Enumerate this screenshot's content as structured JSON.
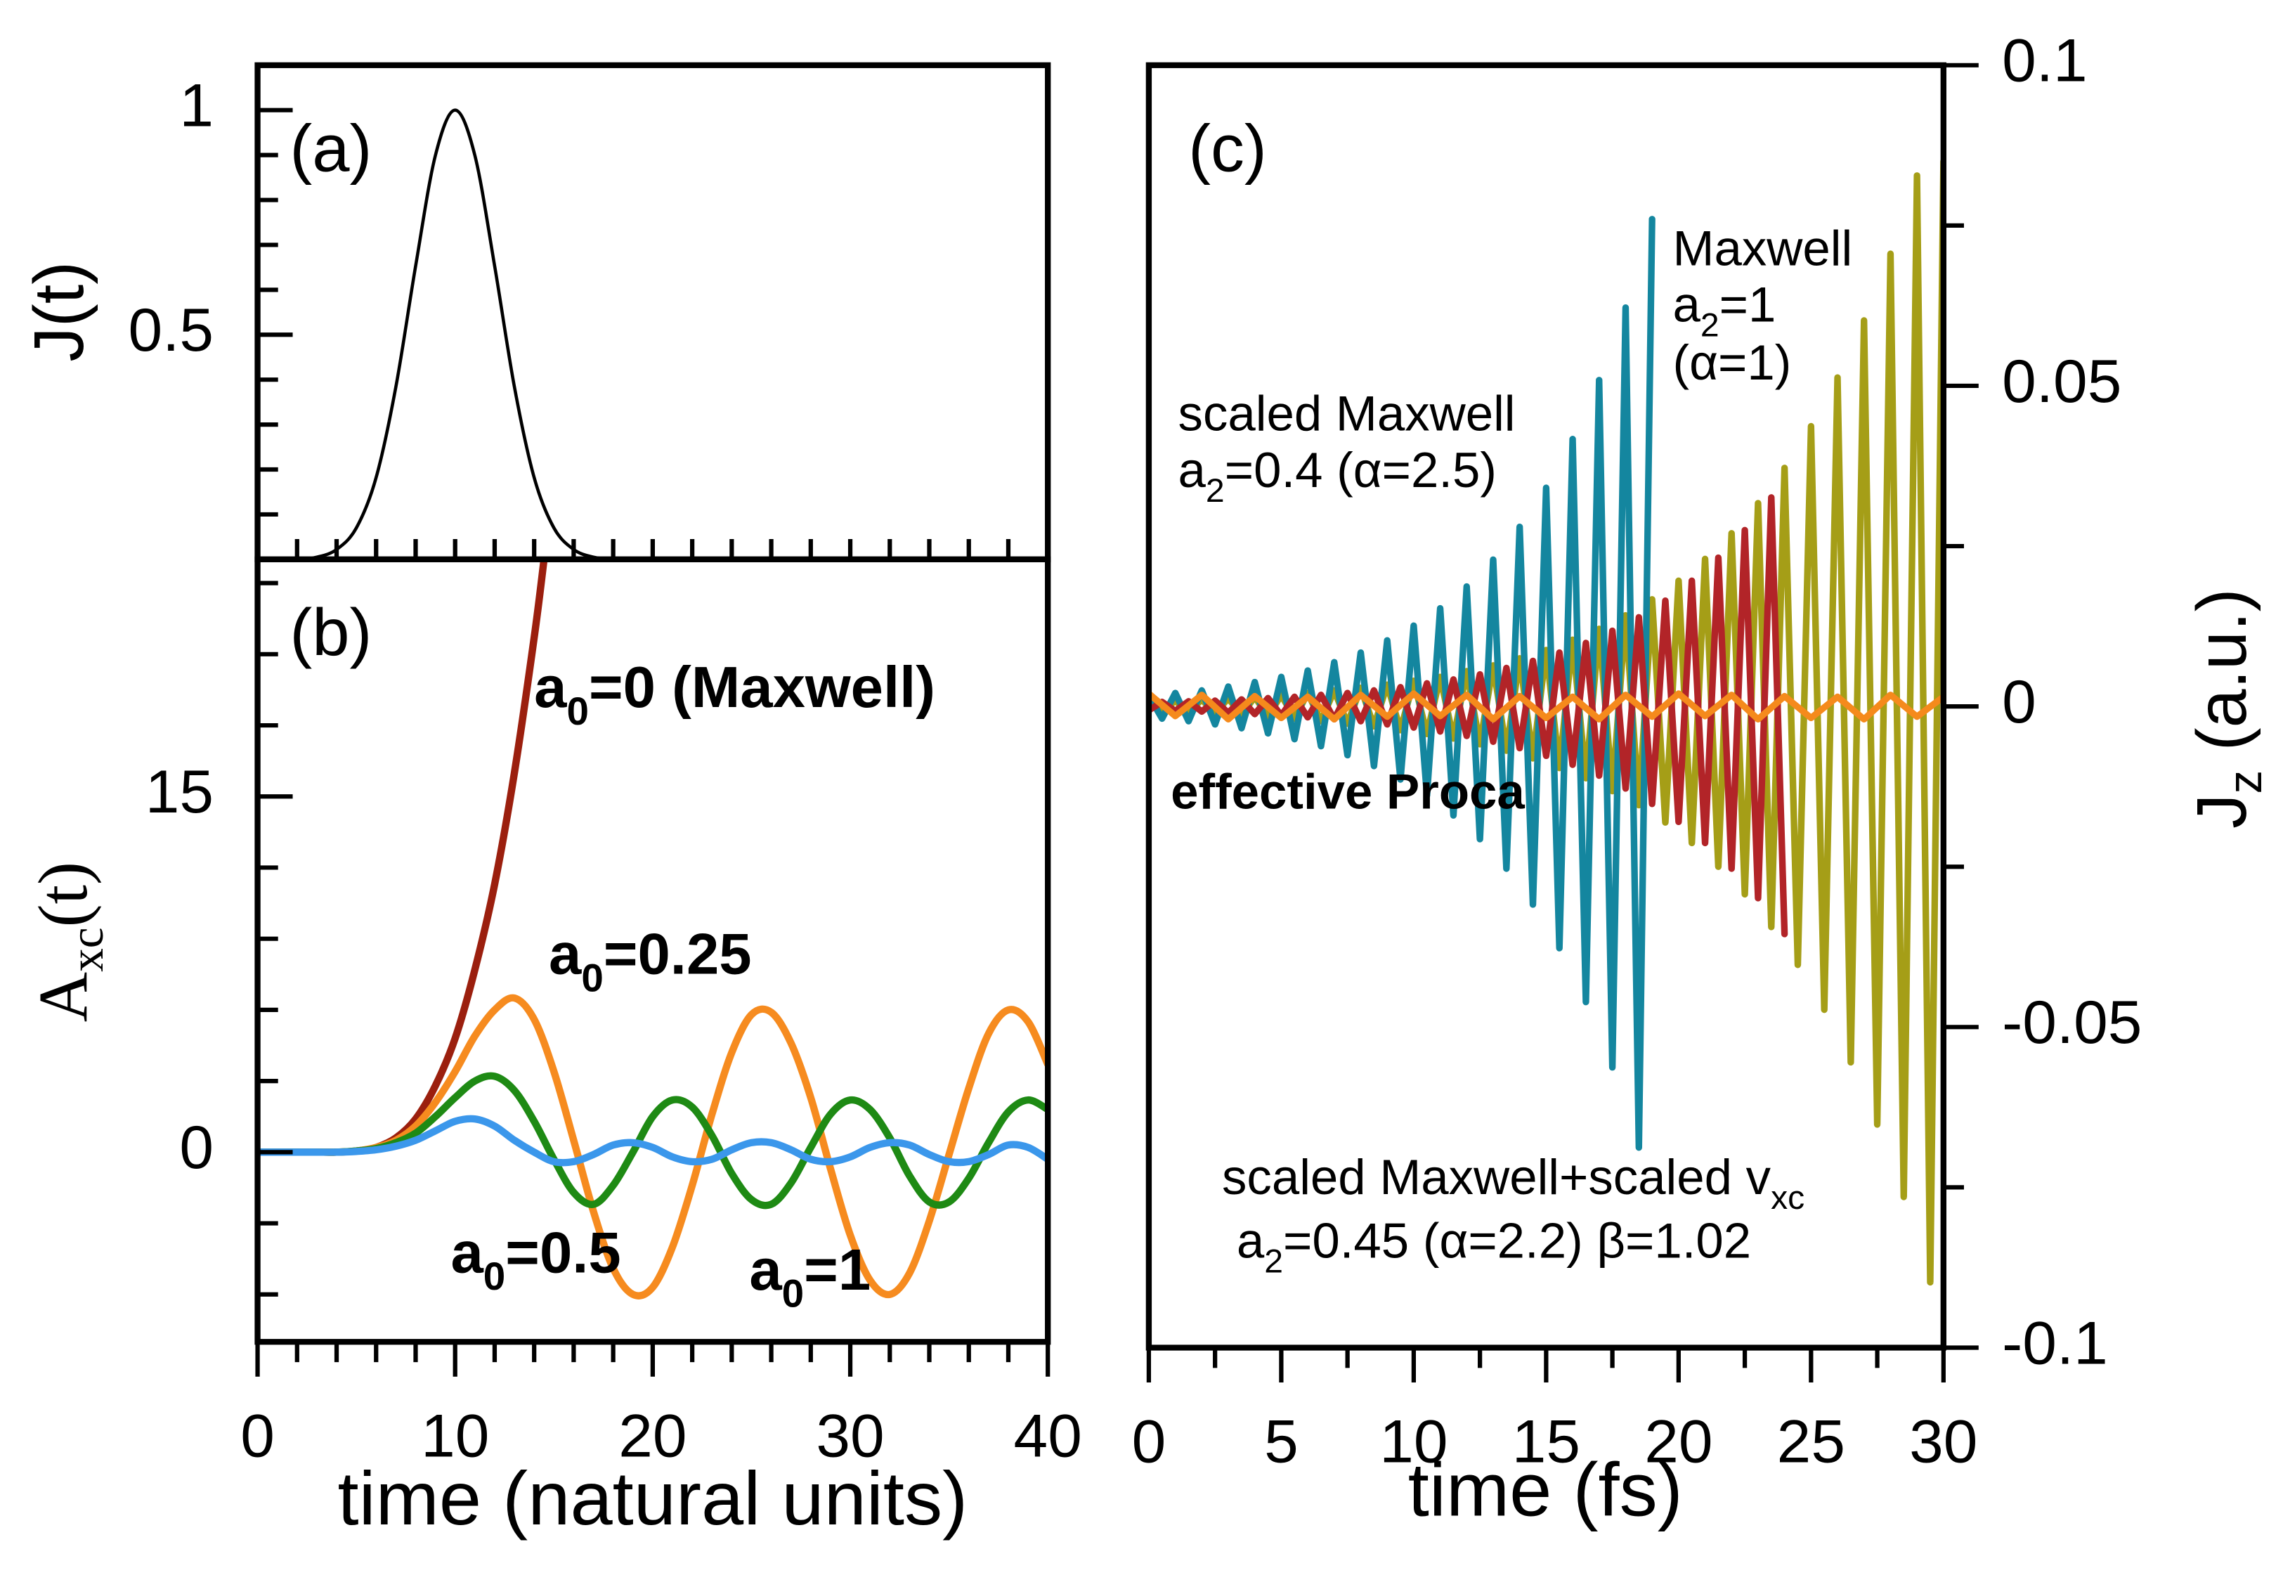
{
  "chart_data": [
    {
      "type": "line",
      "ylabel": "J(t)",
      "annotations": [
        {
          "text": [
            "(a)"
          ],
          "color": "#000000"
        }
      ],
      "xlim": [
        0,
        40
      ],
      "xticks_minor": [
        0,
        2,
        4,
        6,
        8,
        10,
        12,
        14,
        16,
        18,
        20,
        22,
        24,
        26,
        28,
        30,
        32,
        34,
        36,
        38,
        40
      ],
      "ylim": [
        0,
        1.1
      ],
      "yticks": [
        0.5,
        1
      ],
      "yticks_minor": [
        0.1,
        0.2,
        0.3,
        0.4,
        0.6,
        0.7,
        0.8,
        0.9
      ],
      "series": [
        {
          "color": "#000000",
          "x": [
            0,
            2,
            3,
            4,
            5,
            6,
            7,
            8,
            9,
            10,
            11,
            12,
            13,
            14,
            15,
            16,
            17,
            18,
            20,
            40
          ],
          "values": [
            0,
            0,
            0.005,
            0.022,
            0.07,
            0.182,
            0.384,
            0.653,
            0.899,
            1,
            0.899,
            0.653,
            0.384,
            0.182,
            0.07,
            0.022,
            0.005,
            0.001,
            0,
            0
          ]
        }
      ]
    },
    {
      "type": "line",
      "ylabel": [
        "A",
        "xc",
        "(t)"
      ],
      "xlabel": "time (natural units)",
      "annotations": [
        {
          "text": [
            "(b)"
          ],
          "color": "#000000"
        },
        {
          "text": [
            "a",
            "0",
            "=0 (Maxwell)"
          ],
          "color": "#9b1f0e"
        },
        {
          "text": [
            "a",
            "0",
            "=0.25"
          ],
          "color": "#f68b1f"
        },
        {
          "text": [
            "a",
            "0",
            "=0.5"
          ],
          "color": "#1e8a14"
        },
        {
          "text": [
            "a",
            "0",
            "=1"
          ],
          "color": "#3b97eb"
        }
      ],
      "xlim": [
        0,
        40
      ],
      "xticks": [
        0,
        10,
        20,
        30,
        40
      ],
      "xticks_minor": [
        2,
        4,
        6,
        8,
        12,
        14,
        16,
        18,
        22,
        24,
        26,
        28,
        32,
        34,
        36,
        38
      ],
      "ylim": [
        -8,
        25
      ],
      "yticks": [
        0,
        15
      ],
      "yticks_minor": [
        -6,
        -3,
        3,
        6,
        9,
        12,
        18,
        21,
        24
      ],
      "series": [
        {
          "color": "#9b1f0e",
          "x": [
            0,
            1,
            2,
            3,
            4,
            5,
            6,
            7,
            8,
            9,
            10,
            11,
            12,
            13,
            14,
            14.5
          ],
          "values": [
            0,
            0,
            0,
            0,
            0,
            0.05,
            0.2,
            0.6,
            1.4,
            2.8,
            4.8,
            7.7,
            11.3,
            16,
            21.7,
            25
          ]
        },
        {
          "color": "#f68b1f",
          "x": [
            0,
            1,
            2,
            3,
            4,
            5,
            6,
            7,
            8,
            9,
            10,
            11,
            12,
            13,
            14,
            15,
            16,
            17,
            18,
            19,
            20,
            21,
            22,
            23,
            24,
            25,
            26,
            27,
            28,
            29,
            30,
            31,
            32,
            33,
            34,
            35,
            36,
            37,
            38,
            39,
            40
          ],
          "values": [
            0,
            0,
            0,
            0,
            0,
            0.05,
            0.2,
            0.5,
            1.1,
            2.1,
            3.4,
            4.9,
            6,
            6.5,
            5.6,
            3.4,
            0.5,
            -2.5,
            -4.9,
            -6,
            -5.7,
            -4,
            -1.4,
            1.6,
            4.2,
            5.8,
            5.9,
            4.6,
            2.3,
            -0.7,
            -3.5,
            -5.4,
            -6,
            -5.1,
            -2.9,
            -0.1,
            2.7,
            5,
            6,
            5.5,
            3.7
          ]
        },
        {
          "color": "#1e8a14",
          "x": [
            0,
            1,
            2,
            3,
            4,
            5,
            6,
            7,
            8,
            9,
            10,
            11,
            12,
            13,
            14,
            15,
            16,
            17,
            18,
            19,
            20,
            21,
            22,
            23,
            24,
            25,
            26,
            27,
            28,
            29,
            30,
            31,
            32,
            33,
            34,
            35,
            36,
            37,
            38,
            39,
            40
          ],
          "values": [
            0,
            0,
            0,
            0,
            0,
            0.05,
            0.15,
            0.4,
            0.8,
            1.5,
            2.3,
            3,
            3.2,
            2.6,
            1.3,
            -0.3,
            -1.7,
            -2.2,
            -1.4,
            0,
            1.5,
            2.2,
            1.9,
            0.7,
            -0.9,
            -2,
            -2.2,
            -1.3,
            0.2,
            1.6,
            2.2,
            1.8,
            0.6,
            -1,
            -2.1,
            -2.1,
            -1.1,
            0.4,
            1.7,
            2.2,
            1.8
          ]
        },
        {
          "color": "#3b97eb",
          "x": [
            0,
            1,
            2,
            3,
            4,
            5,
            6,
            7,
            8,
            9,
            10,
            11,
            12,
            13,
            14,
            15,
            16,
            17,
            18,
            19,
            20,
            21,
            22,
            23,
            24,
            25,
            26,
            27,
            28,
            29,
            30,
            31,
            32,
            33,
            34,
            35,
            36,
            37,
            38,
            39,
            40
          ],
          "values": [
            0,
            0,
            0,
            0,
            0,
            0.03,
            0.1,
            0.25,
            0.5,
            0.9,
            1.3,
            1.4,
            1.1,
            0.5,
            0,
            -0.4,
            -0.4,
            -0.1,
            0.3,
            0.4,
            0.2,
            -0.2,
            -0.4,
            -0.3,
            0.1,
            0.4,
            0.4,
            0.1,
            -0.3,
            -0.4,
            -0.2,
            0.2,
            0.4,
            0.3,
            -0.1,
            -0.4,
            -0.4,
            -0.1,
            0.3,
            0.2,
            -0.3
          ]
        }
      ]
    },
    {
      "type": "line",
      "ylabel": [
        "J",
        "z",
        " (a.u.)"
      ],
      "xlabel": "time (fs)",
      "annotations": [
        {
          "text": [
            "(c)"
          ],
          "color": "#000000"
        },
        {
          "text": [
            "Maxwell"
          ],
          "color": "#b22428"
        },
        {
          "text": [
            "a",
            "2",
            "=1"
          ],
          "color": "#b22428"
        },
        {
          "text": [
            "(α=1)"
          ],
          "color": "#b22428"
        },
        {
          "text": [
            "scaled Maxwell"
          ],
          "color": "#14869f"
        },
        {
          "text": [
            "a",
            "2",
            "=0.4 (α=2.5)"
          ],
          "color": "#14869f"
        },
        {
          "text": [
            "effective Proca"
          ],
          "color": "#f58a1c"
        },
        {
          "text": [
            "scaled Maxwell+scaled v",
            "xc"
          ],
          "color": "#a59e17"
        },
        {
          "text": [
            "a",
            "2",
            "=0.45 (α=2.2)  β=1.02"
          ],
          "color": "#a59e17"
        }
      ],
      "xlim": [
        0,
        30
      ],
      "xticks": [
        0,
        5,
        10,
        15,
        20,
        25,
        30
      ],
      "xticks_minor": [
        2.5,
        7.5,
        12.5,
        17.5,
        22.5,
        27.5
      ],
      "ylim": [
        -0.1,
        0.1
      ],
      "yticks": [
        -0.1,
        -0.05,
        0,
        0.05,
        0.1
      ],
      "yticks_minor": [
        -0.075,
        -0.025,
        0.025,
        0.075
      ],
      "series": [
        {
          "color": "#a59e17",
          "x": [
            0,
            0.5,
            1,
            1.5,
            2,
            2.5,
            3,
            3.5,
            4,
            4.5,
            5,
            5.5,
            6,
            6.5,
            7,
            7.5,
            8,
            8.5,
            9,
            9.5,
            10,
            10.5,
            11,
            11.5,
            12,
            12.5,
            13,
            13.5,
            14,
            14.5,
            15,
            15.5,
            16,
            16.5,
            17,
            17.5,
            18,
            18.5,
            19,
            19.5,
            20,
            20.5,
            21,
            21.5,
            22,
            22.5,
            23,
            23.5,
            24,
            24.5,
            25,
            25.5,
            26,
            26.5,
            27,
            27.5,
            28,
            28.5,
            29,
            29.5,
            30
          ],
          "values": [
            0.0008,
            -0.0009,
            0.0009,
            -0.001,
            0.0011,
            -0.0012,
            0.0013,
            -0.0014,
            0.0015,
            -0.0016,
            0.0018,
            -0.0019,
            0.0021,
            -0.0023,
            0.0025,
            -0.0027,
            0.0029,
            -0.0031,
            0.0034,
            -0.0037,
            0.004,
            -0.0043,
            0.0046,
            -0.005,
            0.0055,
            -0.0059,
            0.0064,
            -0.0069,
            0.0075,
            -0.0081,
            0.0088,
            -0.0096,
            0.0104,
            -0.0112,
            0.0121,
            -0.0132,
            0.0142,
            -0.0154,
            0.0167,
            -0.0181,
            0.0196,
            -0.0213,
            0.023,
            -0.025,
            0.027,
            -0.0293,
            0.0317,
            -0.0344,
            0.0372,
            -0.0403,
            0.0437,
            -0.0473,
            0.0513,
            -0.0555,
            0.0602,
            -0.0652,
            0.0706,
            -0.0765,
            0.0828,
            -0.0898,
            0.085
          ]
        },
        {
          "color": "#14869f",
          "x": [
            0,
            0.5,
            1,
            1.5,
            2,
            2.5,
            3,
            3.5,
            4,
            4.5,
            5,
            5.5,
            6,
            6.5,
            7,
            7.5,
            8,
            8.5,
            9,
            9.5,
            10,
            10.5,
            11,
            11.5,
            12,
            12.5,
            13,
            13.5,
            14,
            14.5,
            15,
            15.5,
            16,
            16.5,
            17,
            17.5,
            18,
            18.5,
            19
          ],
          "values": [
            0.0017,
            -0.0019,
            0.0021,
            -0.0023,
            0.0025,
            -0.0028,
            0.0031,
            -0.0034,
            0.0038,
            -0.0042,
            0.0046,
            -0.0051,
            0.0056,
            -0.0062,
            0.0069,
            -0.0076,
            0.0084,
            -0.0093,
            0.0103,
            -0.0114,
            0.0126,
            -0.0139,
            0.0153,
            -0.017,
            0.0187,
            -0.0207,
            0.0229,
            -0.0253,
            0.028,
            -0.0309,
            0.0341,
            -0.0377,
            0.0417,
            -0.0461,
            0.0509,
            -0.0563,
            0.0622,
            -0.0688,
            0.076
          ]
        },
        {
          "color": "#b22428",
          "x": [
            0,
            0.5,
            1,
            1.5,
            2,
            2.5,
            3,
            3.5,
            4,
            4.5,
            5,
            5.5,
            6,
            6.5,
            7,
            7.5,
            8,
            8.5,
            9,
            9.5,
            10,
            10.5,
            11,
            11.5,
            12,
            12.5,
            13,
            13.5,
            14,
            14.5,
            15,
            15.5,
            16,
            16.5,
            17,
            17.5,
            18,
            18.5,
            19,
            19.5,
            20,
            20.5,
            21,
            21.5,
            22,
            22.5,
            23,
            23.5,
            24
          ],
          "values": [
            -0.0006,
            0.0007,
            -0.0007,
            0.0008,
            -0.0008,
            0.0009,
            -0.001,
            0.0011,
            -0.0012,
            0.0013,
            -0.0014,
            0.0015,
            -0.0017,
            0.0018,
            -0.002,
            0.0021,
            -0.0023,
            0.0025,
            -0.0028,
            0.003,
            -0.0033,
            0.0036,
            -0.0039,
            0.0042,
            -0.0046,
            0.005,
            -0.0055,
            0.006,
            -0.0065,
            0.0071,
            -0.0077,
            0.0084,
            -0.0091,
            0.0099,
            -0.0108,
            0.0118,
            -0.0128,
            0.0139,
            -0.0152,
            0.0165,
            -0.018,
            0.0196,
            -0.0213,
            0.0232,
            -0.0253,
            0.0275,
            -0.0299,
            0.0326,
            -0.0355
          ]
        },
        {
          "color": "#f58a1c",
          "x": [
            0,
            1,
            2,
            3,
            4,
            5,
            6,
            7,
            8,
            9,
            10,
            11,
            12,
            13,
            14,
            15,
            16,
            17,
            18,
            19,
            20,
            21,
            22,
            23,
            24,
            25,
            26,
            27,
            28,
            29,
            30
          ],
          "values": [
            0.002,
            -0.0015,
            0.0018,
            -0.002,
            0.0016,
            -0.0018,
            0.0015,
            -0.002,
            0.0018,
            -0.0016,
            0.002,
            -0.0015,
            0.0018,
            -0.002,
            0.0016,
            -0.0018,
            0.0015,
            -0.002,
            0.0018,
            -0.0016,
            0.002,
            -0.0015,
            0.0018,
            -0.002,
            0.0016,
            -0.0018,
            0.0015,
            -0.002,
            0.0018,
            -0.0016,
            0.0015
          ]
        }
      ]
    }
  ]
}
